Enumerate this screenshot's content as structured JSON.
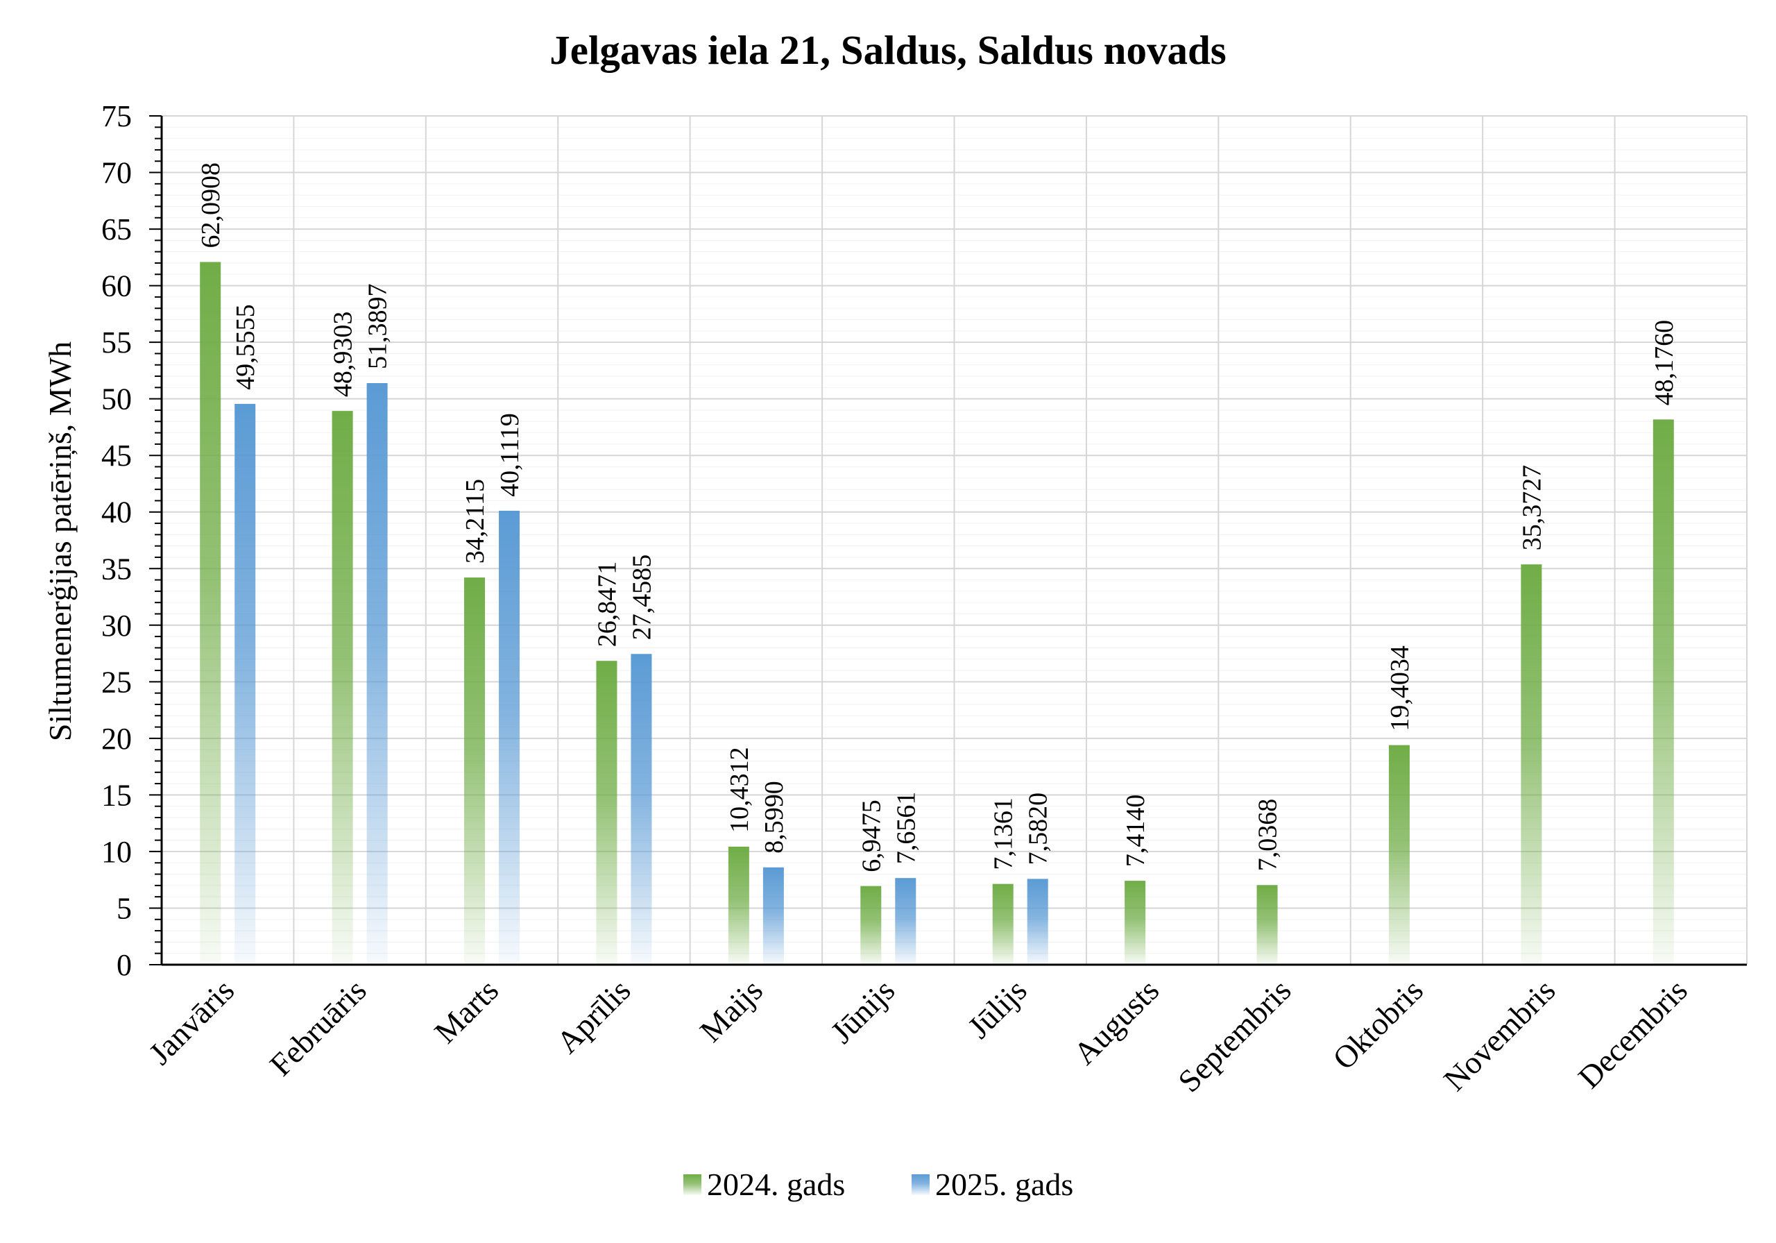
{
  "chart_data": {
    "type": "bar",
    "title": "Jelgavas iela 21, Saldus, Saldus novads",
    "ylabel": "Siltumenerģijas patēriņš, MWh",
    "xlabel": "",
    "ylim": [
      0,
      75
    ],
    "ytick_step": 5,
    "grid": true,
    "legend_position": "bottom",
    "categories": [
      "Janvāris",
      "Februāris",
      "Marts",
      "Aprīlis",
      "Maijs",
      "Jūnijs",
      "Jūlijs",
      "Augusts",
      "Septembris",
      "Oktobris",
      "Novembris",
      "Decembris"
    ],
    "series": [
      {
        "name": "2024. gads",
        "color": "#70AD47",
        "values": [
          62.0908,
          48.9303,
          34.2115,
          26.8471,
          10.4312,
          6.9475,
          7.1361,
          7.414,
          7.0368,
          19.4034,
          35.3727,
          48.176
        ],
        "labels": [
          "62,0908",
          "48,9303",
          "34,2115",
          "26,8471",
          "10,4312",
          "6,9475",
          "7,1361",
          "7,4140",
          "7,0368",
          "19,4034",
          "35,3727",
          "48,1760"
        ]
      },
      {
        "name": "2025. gads",
        "color": "#5B9BD5",
        "values": [
          49.5555,
          51.3897,
          40.1119,
          27.4585,
          8.599,
          7.6561,
          7.582,
          null,
          null,
          null,
          null,
          null
        ],
        "labels": [
          "49,5555",
          "51,3897",
          "40,1119",
          "27,4585",
          "8,5990",
          "7,6561",
          "7,5820",
          null,
          null,
          null,
          null,
          null
        ]
      }
    ]
  }
}
